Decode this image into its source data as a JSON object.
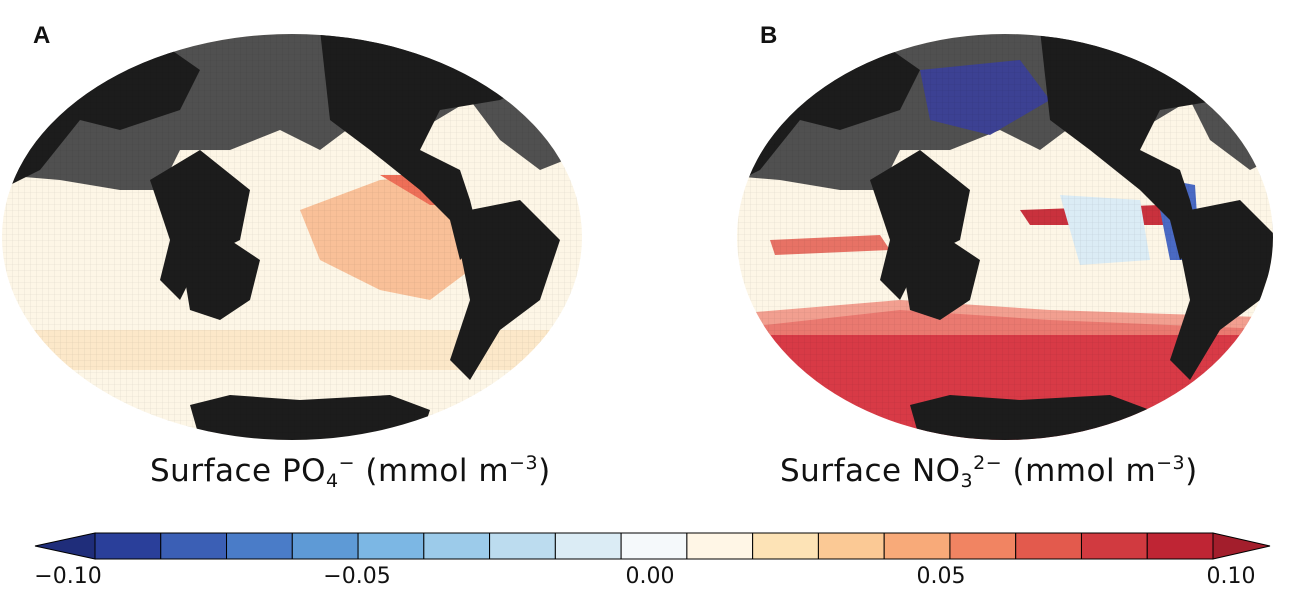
{
  "panels": [
    {
      "label": "A",
      "caption": {
        "prefix": "Surface PO",
        "sub": "4",
        "sup": "−",
        "unit_base": "(mmol m",
        "unit_sup": "−3",
        "unit_close": ")"
      }
    },
    {
      "label": "B",
      "caption": {
        "prefix": "Surface NO",
        "sub": "3",
        "sup": "2−",
        "unit_base": "(mmol m",
        "unit_sup": "−3",
        "unit_close": ")"
      }
    }
  ],
  "colorbar": {
    "range": [
      -0.1,
      0.1
    ],
    "tick_labels": [
      "−0.10",
      "−0.05",
      "0.00",
      "0.05",
      "0.10"
    ],
    "tick_values": [
      -0.1,
      -0.05,
      0.0,
      0.05,
      0.1
    ],
    "colors": [
      "#2a3f9a",
      "#3b5fb5",
      "#4a7cc8",
      "#5e9ad6",
      "#7cb7e4",
      "#9ccbea",
      "#bcdcef",
      "#dbecf5",
      "#f5f9fb",
      "#fff6e6",
      "#fde3b6",
      "#fbc995",
      "#f8aa79",
      "#f18462",
      "#e35a4d",
      "#d13a40",
      "#bf2534"
    ]
  },
  "colors": {
    "land": "#1c1c1c",
    "sea_ice": "#555555",
    "ocean_base": "#fdf6e6",
    "positive": "#d83a46",
    "negative": "#3a4fb0"
  }
}
